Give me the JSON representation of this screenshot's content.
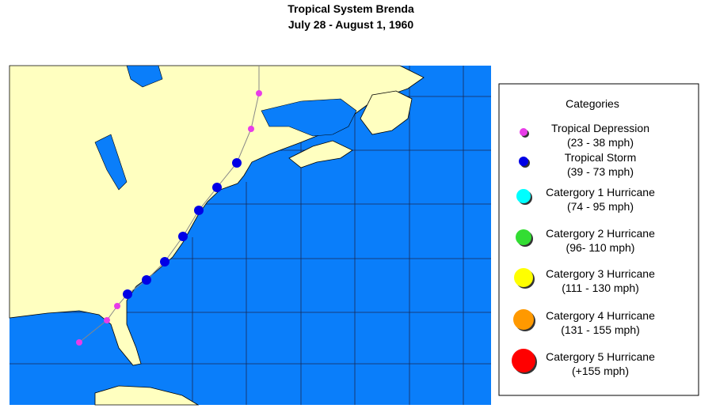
{
  "header": {
    "title": "Tropical System Brenda",
    "subtitle": "July 28 - August 1, 1960"
  },
  "legend": {
    "title": "Categories",
    "items": [
      {
        "name": "Tropical Depression",
        "range": "(23 - 38 mph)",
        "color": "#e83ce8"
      },
      {
        "name": "Tropical Storm",
        "range": "(39 - 73 mph)",
        "color": "#0000e6"
      },
      {
        "name": "Catergory 1 Hurricane",
        "range": "(74 - 95 mph)",
        "color": "#00ffff"
      },
      {
        "name": "Catergory 2 Hurricane",
        "range": "(96- 110 mph)",
        "color": "#33dd33"
      },
      {
        "name": "Catergory 3 Hurricane",
        "range": "(111 - 130 mph)",
        "color": "#ffff00"
      },
      {
        "name": "Catergory 4 Hurricane",
        "range": "(131 - 155 mph)",
        "color": "#ff9900"
      },
      {
        "name": "Catergory 5 Hurricane",
        "range": "(+155 mph)",
        "color": "#ff0000"
      }
    ]
  }
}
